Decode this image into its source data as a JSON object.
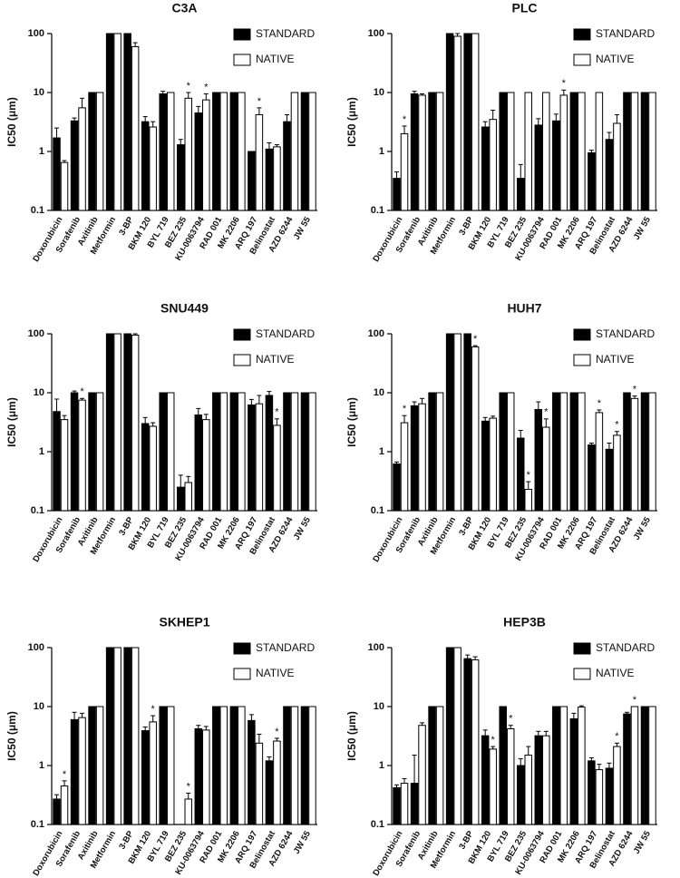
{
  "chart_data": [
    {
      "type": "bar",
      "title": "C3A",
      "ylabel": "IC50 (μm)",
      "yscale": "log",
      "ylim": [
        0.1,
        100
      ],
      "yticks": [
        0.1,
        1,
        10,
        100
      ],
      "categories": [
        "Doxorubicin",
        "Sorafenib",
        "Axitinib",
        "Metformin",
        "3-BP",
        "BKM 120",
        "BYL 719",
        "BEZ 235",
        "KU-0063794",
        "RAD 001",
        "MK 2206",
        "ARQ 197",
        "Belinostat",
        "AZD 6244",
        "JW 55"
      ],
      "series": [
        {
          "name": "STANDARD",
          "color": "#000000",
          "values": [
            1.7,
            3.3,
            10,
            100,
            100,
            3.2,
            9.5,
            1.3,
            4.5,
            10,
            10,
            1.0,
            1.1,
            3.2,
            10
          ],
          "errors": [
            0.8,
            0.4,
            null,
            null,
            null,
            0.7,
            1,
            0.3,
            1.3,
            null,
            null,
            null,
            0.3,
            1,
            null
          ],
          "labels": [
            null,
            null,
            null,
            null,
            null,
            null,
            null,
            null,
            null,
            null,
            null,
            null,
            null,
            null,
            null
          ]
        },
        {
          "name": "NATIVE",
          "color": "#ffffff",
          "values": [
            0.65,
            5.5,
            10,
            100,
            60,
            2.6,
            10,
            8,
            7.5,
            10,
            10,
            4.2,
            1.2,
            10,
            10
          ],
          "errors": [
            0.05,
            2.5,
            null,
            null,
            10,
            0.6,
            null,
            2,
            2,
            null,
            null,
            1.3,
            0.1,
            null,
            null
          ],
          "labels": [
            null,
            null,
            null,
            null,
            null,
            null,
            null,
            "*",
            "*",
            null,
            null,
            "*",
            null,
            null,
            null
          ]
        }
      ]
    },
    {
      "type": "bar",
      "title": "PLC",
      "ylabel": "IC50 (μm)",
      "yscale": "log",
      "ylim": [
        0.1,
        100
      ],
      "yticks": [
        0.1,
        1,
        10,
        100
      ],
      "categories": [
        "Doxorubicin",
        "Sorafenib",
        "Axitinib",
        "Metformin",
        "3-BP",
        "BKM 120",
        "BYL 719",
        "BEZ 235",
        "KU-0063794",
        "RAD 001",
        "MK 2206",
        "ARQ 197",
        "Belinostat",
        "AZD 6244",
        "JW 55"
      ],
      "series": [
        {
          "name": "STANDARD",
          "color": "#000000",
          "values": [
            0.35,
            9.5,
            10,
            100,
            100,
            2.6,
            10,
            0.35,
            2.8,
            3.3,
            10,
            0.95,
            1.6,
            10,
            10
          ],
          "errors": [
            0.1,
            1,
            null,
            null,
            null,
            0.6,
            null,
            0.25,
            0.8,
            1,
            null,
            0.1,
            0.5,
            null,
            null
          ],
          "labels": [
            null,
            null,
            null,
            null,
            null,
            null,
            null,
            null,
            null,
            null,
            null,
            null,
            null,
            null,
            null
          ]
        },
        {
          "name": "NATIVE",
          "color": "#ffffff",
          "values": [
            2.0,
            9,
            10,
            90,
            100,
            3.5,
            10,
            10,
            10,
            9,
            10,
            10,
            3,
            10,
            10
          ],
          "errors": [
            0.7,
            0.5,
            null,
            10,
            null,
            1.5,
            null,
            null,
            null,
            2,
            null,
            null,
            1.2,
            null,
            null
          ],
          "labels": [
            "*",
            null,
            null,
            null,
            null,
            null,
            null,
            null,
            null,
            "*",
            null,
            null,
            null,
            null,
            null
          ]
        }
      ]
    },
    {
      "type": "bar",
      "title": "SNU449",
      "ylabel": "IC50 (μm)",
      "yscale": "log",
      "ylim": [
        0.1,
        100
      ],
      "yticks": [
        0.1,
        1,
        10,
        100
      ],
      "categories": [
        "Doxorubicin",
        "Sorafenib",
        "Axitinib",
        "Metformin",
        "3-BP",
        "BKM 120",
        "BYL 719",
        "BEZ 235",
        "KU-0063794",
        "RAD 001",
        "MK 2206",
        "ARQ 197",
        "Belinostat",
        "AZD 6244",
        "JW 55"
      ],
      "series": [
        {
          "name": "STANDARD",
          "color": "#000000",
          "values": [
            4.8,
            10,
            10,
            100,
            100,
            3,
            10,
            0.25,
            4.2,
            10,
            10,
            6.2,
            9,
            10,
            10
          ],
          "errors": [
            3,
            0.7,
            null,
            null,
            null,
            0.8,
            null,
            0.15,
            1.2,
            null,
            null,
            1.5,
            1.5,
            null,
            null
          ],
          "labels": [
            null,
            null,
            null,
            null,
            null,
            null,
            null,
            null,
            null,
            null,
            null,
            null,
            null,
            null,
            null
          ]
        },
        {
          "name": "NATIVE",
          "color": "#ffffff",
          "values": [
            3.5,
            7.5,
            10,
            100,
            95,
            2.7,
            10,
            0.3,
            3.5,
            10,
            10,
            6.5,
            2.8,
            10,
            10
          ],
          "errors": [
            0.6,
            0.5,
            null,
            null,
            5,
            0.4,
            null,
            0.08,
            0.8,
            null,
            null,
            2.5,
            0.8,
            null,
            null
          ],
          "labels": [
            null,
            "*",
            null,
            null,
            null,
            null,
            null,
            null,
            null,
            null,
            null,
            null,
            "*",
            null,
            null
          ]
        }
      ]
    },
    {
      "type": "bar",
      "title": "HUH7",
      "ylabel": "IC50 (μm)",
      "yscale": "log",
      "ylim": [
        0.1,
        100
      ],
      "yticks": [
        0.1,
        1,
        10,
        100
      ],
      "categories": [
        "Doxorubicin",
        "Sorafenib",
        "Axitinib",
        "Metformin",
        "3-BP",
        "BKM 120",
        "BYL 719",
        "BEZ 235",
        "KU-0063794",
        "RAD 001",
        "MK 2206",
        "ARQ 197",
        "Belinostat",
        "AZD 6244",
        "JW 55"
      ],
      "series": [
        {
          "name": "STANDARD",
          "color": "#000000",
          "values": [
            0.62,
            6,
            10,
            100,
            100,
            3.3,
            10,
            1.7,
            5.2,
            10,
            10,
            1.3,
            1.1,
            10,
            10
          ],
          "errors": [
            0.05,
            1,
            null,
            null,
            null,
            0.5,
            null,
            0.6,
            1.8,
            null,
            null,
            0.1,
            0.3,
            null,
            null
          ],
          "labels": [
            null,
            null,
            null,
            null,
            null,
            null,
            null,
            null,
            null,
            null,
            null,
            null,
            null,
            null,
            null
          ]
        },
        {
          "name": "NATIVE",
          "color": "#ffffff",
          "values": [
            3.1,
            6.5,
            10,
            100,
            60,
            3.7,
            10,
            0.23,
            2.6,
            10,
            10,
            4.6,
            1.9,
            8,
            10
          ],
          "errors": [
            1,
            1.5,
            null,
            null,
            3,
            0.3,
            null,
            0.08,
            1,
            null,
            null,
            0.5,
            0.3,
            0.8,
            null
          ],
          "labels": [
            "*",
            null,
            null,
            null,
            "*",
            null,
            null,
            "*",
            "*",
            null,
            null,
            "*",
            "*",
            "*",
            null
          ]
        }
      ]
    },
    {
      "type": "bar",
      "title": "SKHEP1",
      "ylabel": "IC50 (μm)",
      "yscale": "log",
      "ylim": [
        0.1,
        100
      ],
      "yticks": [
        0.1,
        1,
        10,
        100
      ],
      "categories": [
        "Doxorubicin",
        "Sorafenib",
        "Axitinib",
        "Metformin",
        "3-BP",
        "BKM 120",
        "BYL 719",
        "BEZ 235",
        "KU-0063794",
        "RAD 001",
        "MK 2206",
        "ARQ 197",
        "Belinostat",
        "AZD 6244",
        "JW 55"
      ],
      "series": [
        {
          "name": "STANDARD",
          "color": "#000000",
          "values": [
            0.27,
            6,
            10,
            100,
            100,
            3.9,
            10,
            null,
            4.2,
            10,
            10,
            5.8,
            1.2,
            10,
            10
          ],
          "errors": [
            0.05,
            2,
            null,
            null,
            null,
            0.6,
            null,
            null,
            0.6,
            null,
            null,
            1.5,
            0.2,
            null,
            null
          ],
          "labels": [
            null,
            null,
            null,
            null,
            null,
            null,
            null,
            null,
            null,
            null,
            null,
            null,
            null,
            null,
            null
          ]
        },
        {
          "name": "NATIVE",
          "color": "#ffffff",
          "values": [
            0.45,
            6.5,
            10,
            100,
            100,
            5.5,
            10,
            0.27,
            4,
            10,
            10,
            2.4,
            2.6,
            10,
            10
          ],
          "errors": [
            0.1,
            1.2,
            null,
            null,
            null,
            1.5,
            null,
            0.07,
            0.6,
            null,
            null,
            1,
            0.3,
            null,
            null
          ],
          "labels": [
            "*",
            null,
            null,
            null,
            null,
            "*",
            null,
            "*",
            null,
            null,
            null,
            null,
            "*",
            null,
            null
          ]
        }
      ]
    },
    {
      "type": "bar",
      "title": "HEP3B",
      "ylabel": "IC50 (μm)",
      "yscale": "log",
      "ylim": [
        0.1,
        100
      ],
      "yticks": [
        0.1,
        1,
        10,
        100
      ],
      "categories": [
        "Doxorubicin",
        "Sorafenib",
        "Axitinib",
        "Metformin",
        "3-BP",
        "BKM 120",
        "BYL 719",
        "BEZ 235",
        "KU-0063794",
        "RAD 001",
        "MK 2206",
        "ARQ 197",
        "Belinostat",
        "AZD 6244",
        "JW 55"
      ],
      "series": [
        {
          "name": "STANDARD",
          "color": "#000000",
          "values": [
            0.42,
            0.5,
            10,
            100,
            65,
            3.2,
            10,
            1,
            3.2,
            10,
            6.2,
            1.2,
            0.9,
            7.5,
            10
          ],
          "errors": [
            0.05,
            1,
            null,
            null,
            10,
            0.8,
            null,
            0.3,
            0.6,
            null,
            1.5,
            0.15,
            0.2,
            0.5,
            null
          ],
          "labels": [
            null,
            null,
            null,
            null,
            null,
            null,
            null,
            null,
            null,
            null,
            null,
            null,
            null,
            null,
            null
          ]
        },
        {
          "name": "NATIVE",
          "color": "#ffffff",
          "values": [
            0.5,
            4.8,
            10,
            100,
            62,
            1.9,
            4.2,
            1.5,
            3.2,
            10,
            9.8,
            0.85,
            2.1,
            10,
            10
          ],
          "errors": [
            0.1,
            0.5,
            null,
            null,
            8,
            0.2,
            0.6,
            0.6,
            0.6,
            null,
            0.5,
            0.2,
            0.3,
            null,
            null
          ],
          "labels": [
            null,
            null,
            null,
            null,
            null,
            "*",
            "*",
            null,
            null,
            null,
            null,
            null,
            "*",
            "*",
            null
          ]
        }
      ]
    }
  ]
}
